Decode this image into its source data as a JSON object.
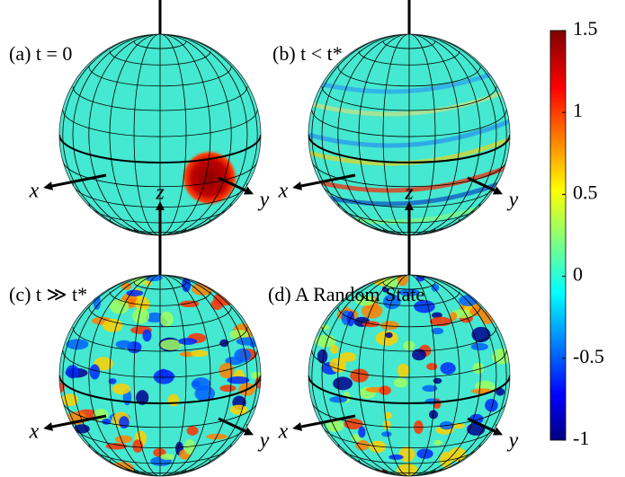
{
  "panels": [
    {
      "label": "(a) t = 0",
      "axes": [
        "x",
        "y",
        "z"
      ]
    },
    {
      "label": "(b) t < t*",
      "axes": [
        "x",
        "y",
        "z"
      ]
    },
    {
      "label": "(c) t ≫ t*",
      "axes": [
        "x",
        "y",
        "z"
      ]
    },
    {
      "label": "(d) A Random State",
      "axes": [
        "x",
        "y",
        "z"
      ]
    }
  ],
  "colorbar": {
    "lim": [
      -1,
      1.5
    ],
    "ticks": [
      1.5,
      1,
      0.5,
      0,
      -0.5,
      -1
    ]
  }
}
